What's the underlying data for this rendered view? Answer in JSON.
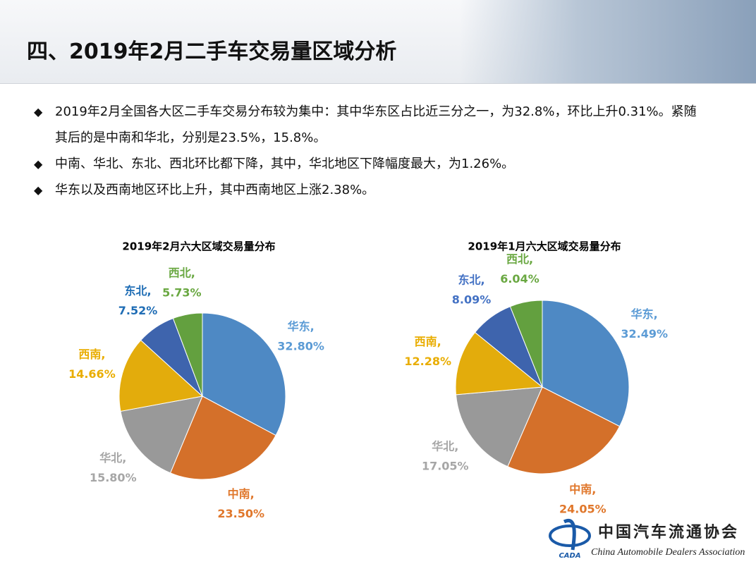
{
  "header": {
    "title": "四、2019年2月二手车交易量区域分析"
  },
  "bullets": [
    "2019年2月全国各大区二手车交易分布较为集中：其中华东区占比近三分之一，为32.8%，环比上升0.31%。紧随其后的是中南和华北，分别是23.5%，15.8%。",
    "中南、华北、东北、西北环比都下降，其中，华北地区下降幅度最大，为1.26%。",
    "华东以及西南地区环比上升，其中西南地区上涨2.38%。"
  ],
  "chart_data": [
    {
      "type": "pie",
      "title": "2019年2月六大区域交易量分布",
      "categories": [
        "华东,",
        "中南,",
        "华北,",
        "西南,",
        "东北,",
        "西北,"
      ],
      "values": [
        32.8,
        23.5,
        15.8,
        14.66,
        7.52,
        5.73
      ],
      "value_labels": [
        "32.80%",
        "23.50%",
        "15.80%",
        "14.66%",
        "7.52%",
        "5.73%"
      ],
      "colors": [
        "#4e89c4",
        "#d4702a",
        "#999999",
        "#e3ac0c",
        "#3e64ad",
        "#63a03f"
      ],
      "label_colors": [
        "#5b9bd5",
        "#e0772b",
        "#a6a6a6",
        "#e9ad00",
        "#1f6db5",
        "#6aa842"
      ]
    },
    {
      "type": "pie",
      "title": "2019年1月六大区域交易量分布",
      "categories": [
        "华东,",
        "中南,",
        "华北,",
        "西南,",
        "东北,",
        "西北,"
      ],
      "values": [
        32.49,
        24.05,
        17.05,
        12.28,
        8.09,
        6.04
      ],
      "value_labels": [
        "32.49%",
        "24.05%",
        "17.05%",
        "12.28%",
        "8.09%",
        "6.04%"
      ],
      "colors": [
        "#4e89c4",
        "#d4702a",
        "#999999",
        "#e3ac0c",
        "#3e64ad",
        "#63a03f"
      ],
      "label_colors": [
        "#5b9bd5",
        "#e0772b",
        "#a6a6a6",
        "#e9ad00",
        "#4472c4",
        "#6aa842"
      ]
    }
  ],
  "logo": {
    "name": "中国汽车流通协会",
    "english": "China Automobile Dealers Association",
    "abbr": "CADA"
  }
}
